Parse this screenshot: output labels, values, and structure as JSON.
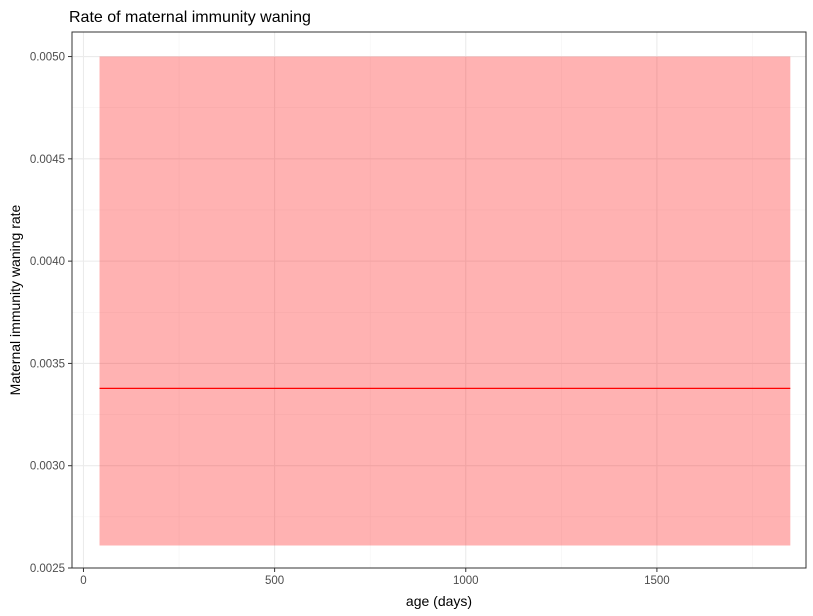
{
  "chart_data": {
    "type": "area",
    "title": "Rate of maternal immunity waning",
    "xlabel": "age (days)",
    "ylabel": "Maternal immunity waning rate",
    "xlim": [
      -30,
      1890
    ],
    "ylim": [
      0.0025,
      0.00512
    ],
    "x_ticks": [
      0,
      500,
      1000,
      1500
    ],
    "x_minor_ticks": [
      250,
      750,
      1250,
      1750
    ],
    "y_ticks": [
      0.0025,
      0.003,
      0.0035,
      0.004,
      0.0045,
      0.005
    ],
    "y_tick_labels": [
      "0.0025",
      "0.0030",
      "0.0035",
      "0.0040",
      "0.0045",
      "0.0050"
    ],
    "y_minor_ticks": [
      0.00275,
      0.00325,
      0.00375,
      0.00425,
      0.00475
    ],
    "grid": true,
    "legend": "none",
    "series": [
      {
        "x": [
          42,
          1849
        ],
        "y": [
          0.003378,
          0.003378
        ],
        "lower": [
          0.00261,
          0.00261
        ],
        "upper": [
          0.005,
          0.005
        ],
        "line_color": "#ff0000",
        "ribbon_color": "#ff0000",
        "ribbon_opacity": 0.3
      }
    ],
    "colors": {
      "panel_border": "#333333",
      "grid_major": "#ebebeb",
      "grid_minor": "#f4f4f4",
      "tick": "#333333"
    }
  }
}
